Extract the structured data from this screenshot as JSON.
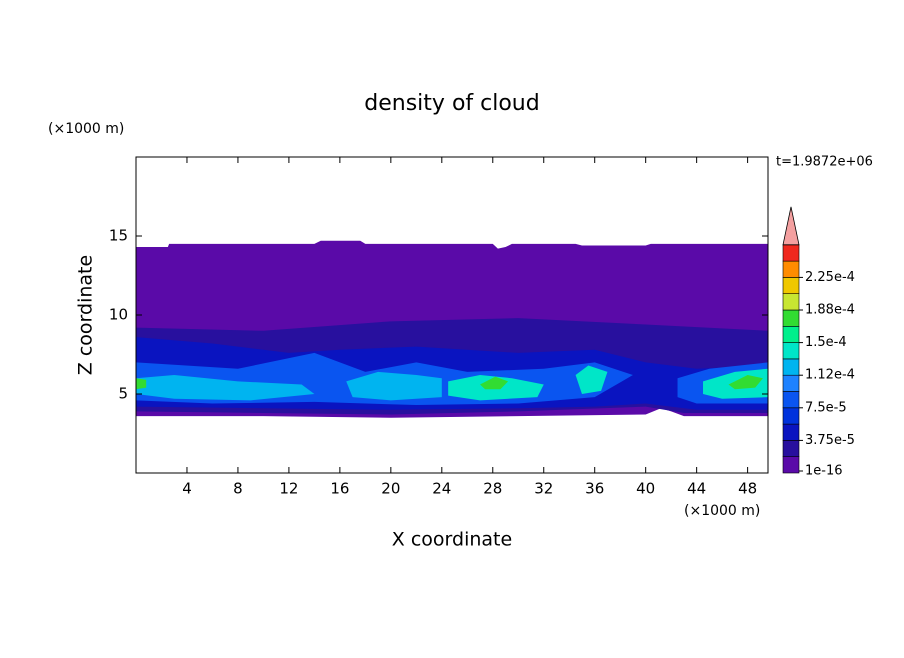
{
  "chart_data": {
    "type": "contour",
    "title": "density of cloud",
    "x_label": "X coordinate",
    "y_label": "Z coordinate",
    "x_unit": "(×1000 m)",
    "y_unit": "(×1000 m)",
    "time_label": "t=1.9872e+06",
    "xlim": [
      0,
      49.6
    ],
    "ylim": [
      0,
      20
    ],
    "xticks": [
      4,
      8,
      12,
      16,
      20,
      24,
      28,
      32,
      36,
      40,
      44,
      48
    ],
    "yticks": [
      5,
      10,
      15
    ],
    "colorbar": {
      "colors": [
        "#5a0aa8",
        "#28109e",
        "#0a14c0",
        "#0032dc",
        "#0a55f0",
        "#1e82ff",
        "#00b4f0",
        "#00e6c8",
        "#00f08c",
        "#32dc32",
        "#c8e632",
        "#f0c800",
        "#ff8c00",
        "#f0281e"
      ],
      "over_color": "#f4a0a0",
      "ticks": [
        {
          "value": 1e-16,
          "label": "1e-16"
        },
        {
          "value": 3.75e-05,
          "label": "3.75e-5"
        },
        {
          "value": 7.5e-05,
          "label": "7.5e-5"
        },
        {
          "value": 0.000112,
          "label": "1.12e-4"
        },
        {
          "value": 0.00015,
          "label": "1.5e-4"
        },
        {
          "value": 0.000188,
          "label": "1.88e-4"
        },
        {
          "value": 0.000225,
          "label": "2.25e-4"
        }
      ]
    }
  }
}
